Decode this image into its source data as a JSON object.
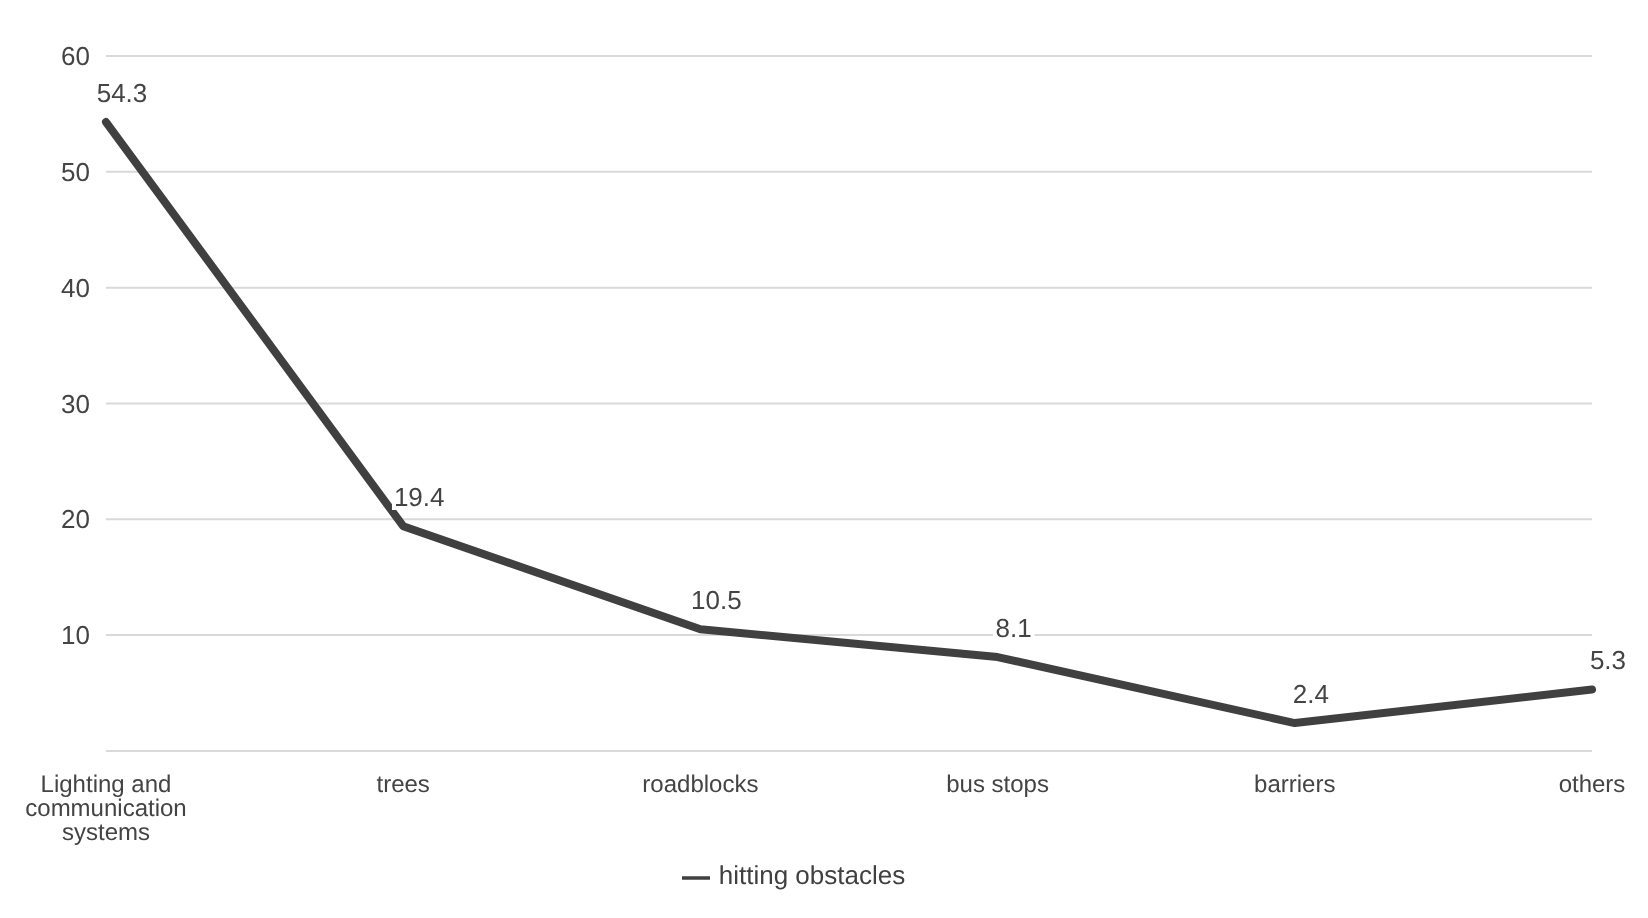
{
  "chart_data": {
    "type": "line",
    "categories": [
      "Lighting and communication systems",
      "trees",
      "roadblocks",
      "bus stops",
      "barriers",
      "others"
    ],
    "series": [
      {
        "name": "hitting obstacles",
        "color": "#404040",
        "values": [
          54.3,
          19.4,
          10.5,
          8.1,
          2.4,
          5.3
        ]
      }
    ],
    "ylim": [
      0,
      60
    ],
    "yticks": [
      {
        "value": 0,
        "label": null
      },
      10,
      20,
      30,
      40,
      50,
      60
    ],
    "grid": "y",
    "legend": "bottom",
    "data_labels": true,
    "marker": "none",
    "line_style": "solid"
  }
}
